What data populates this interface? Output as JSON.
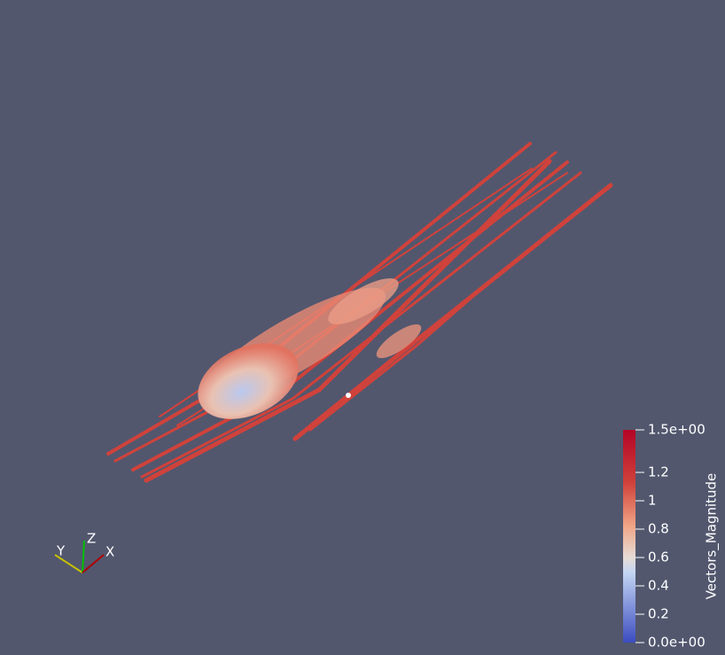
{
  "colorbar": {
    "title": "Vectors_Magnitude",
    "range": [
      0,
      1.5
    ],
    "ticks": [
      {
        "value": 1.5,
        "label": "1.5e+00"
      },
      1.2,
      1,
      0.8,
      0.6,
      0.4,
      0.2,
      {
        "value": 0,
        "label": "0.0e+00"
      }
    ]
  },
  "orientation_axes": {
    "x": "X",
    "y": "Y",
    "z": "Z"
  }
}
